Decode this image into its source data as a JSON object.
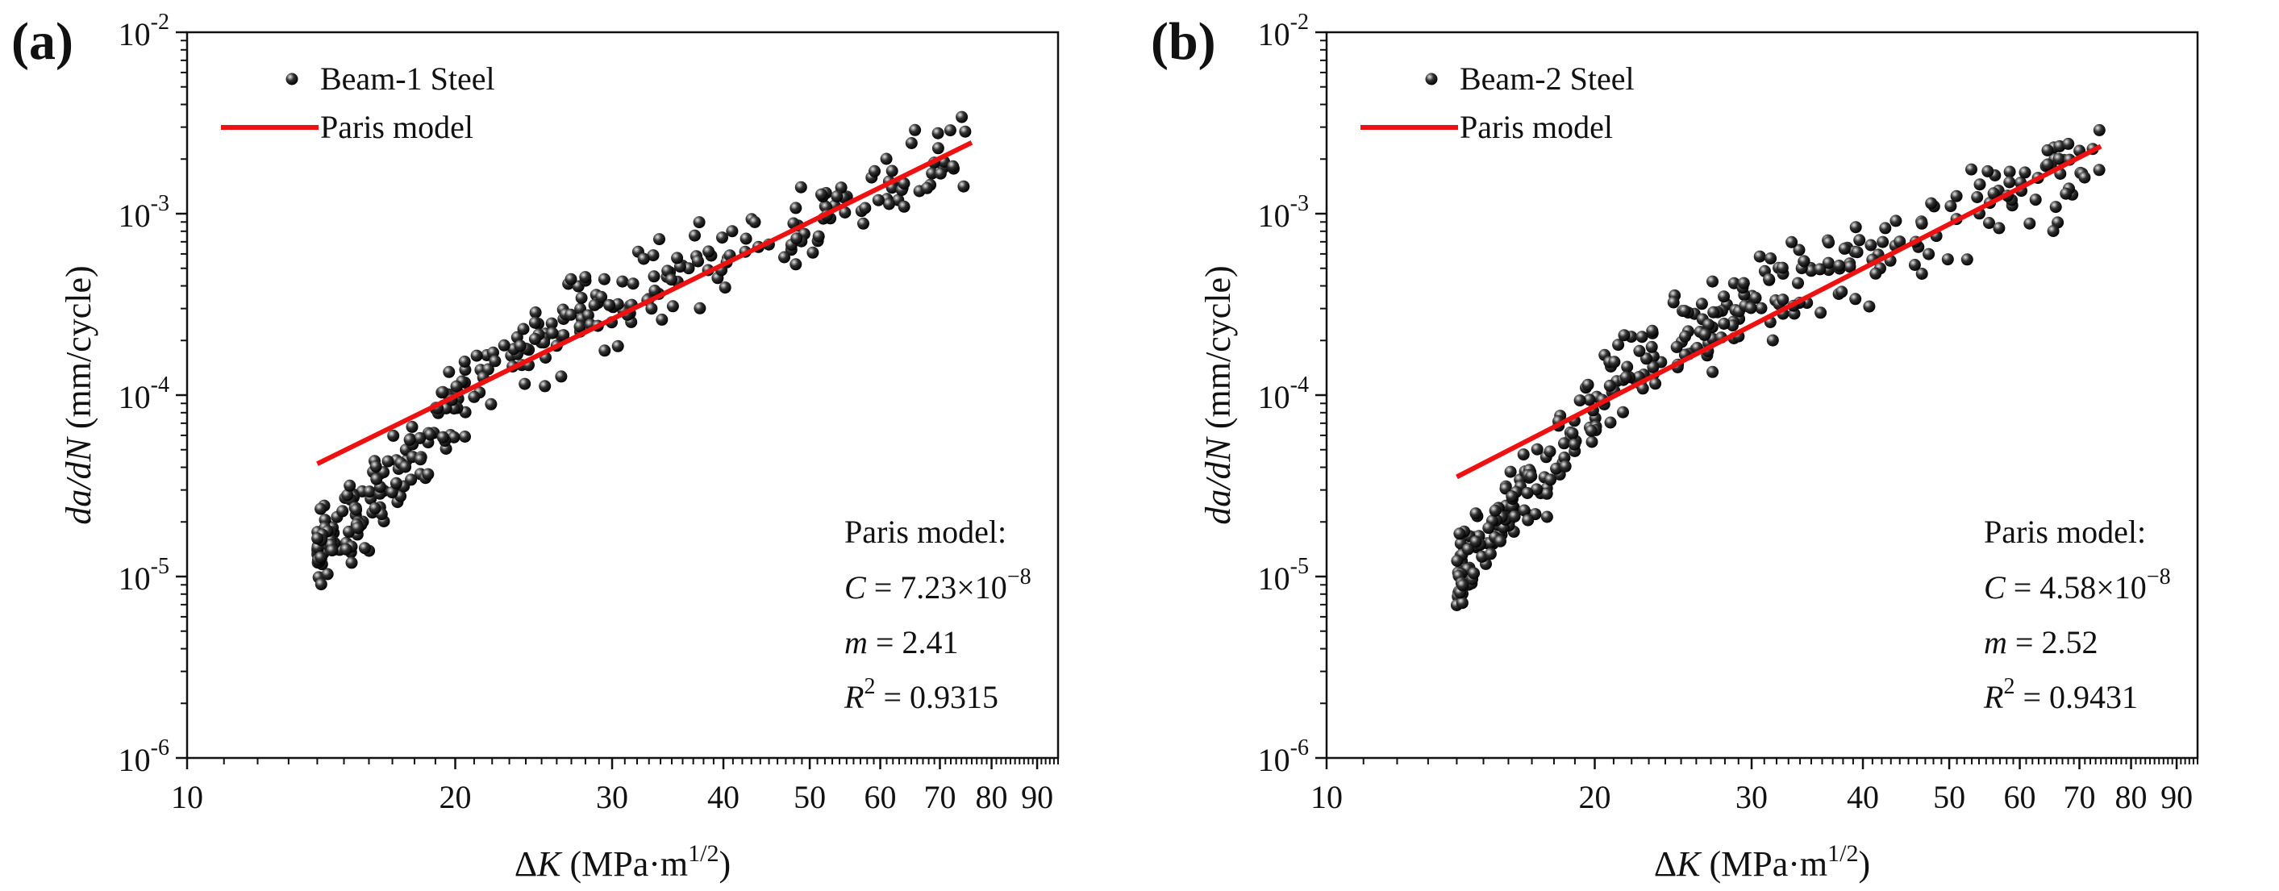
{
  "panels": [
    {
      "letter": "(a)",
      "legend": {
        "scatter": "Beam-1 Steel",
        "line": "Paris model"
      },
      "annotation": {
        "title": "Paris model:",
        "c_label": "C",
        "c_value": "7.23×10",
        "c_exp": "−8",
        "m_label": "m",
        "m_value": "2.41",
        "r_label": "R",
        "r_exp": "2",
        "r_value": "0.9315"
      }
    },
    {
      "letter": "(b)",
      "legend": {
        "scatter": "Beam-2 Steel",
        "line": "Paris model"
      },
      "annotation": {
        "title": "Paris model:",
        "c_label": "C",
        "c_value": "4.58×10",
        "c_exp": "−8",
        "m_label": "m",
        "m_value": "2.52",
        "r_label": "R",
        "r_exp": "2",
        "r_value": "0.9431"
      }
    }
  ],
  "chart_data": [
    {
      "type": "scatter",
      "title": "(a)",
      "xlabel": "ΔK (MPa·m^1/2)",
      "ylabel": "da/dN (mm/cycle)",
      "xscale": "log",
      "yscale": "log",
      "xlim": [
        10,
        95
      ],
      "ylim": [
        1e-06,
        0.01
      ],
      "xticks": [
        10,
        20,
        30,
        40,
        50,
        60,
        70,
        80,
        90
      ],
      "yticks": [
        {
          "base": "10",
          "exp": "-6"
        },
        {
          "base": "10",
          "exp": "-5"
        },
        {
          "base": "10",
          "exp": "-4"
        },
        {
          "base": "10",
          "exp": "-3"
        },
        {
          "base": "10",
          "exp": "-2"
        }
      ],
      "legend_position": "top-left",
      "series": [
        {
          "name": "Beam-1 Steel",
          "kind": "points",
          "xrange": [
            14,
            76
          ],
          "seed": 7,
          "points": [
            [
              14.0,
              1.3e-05
            ],
            [
              14.5,
              1.7e-05
            ],
            [
              15.0,
              2e-05
            ],
            [
              16.0,
              2.5e-05
            ],
            [
              17.0,
              3.3e-05
            ],
            [
              18.0,
              4.5e-05
            ],
            [
              19.0,
              7e-05
            ],
            [
              20.0,
              0.0001
            ],
            [
              22.0,
              0.00014
            ],
            [
              24.0,
              0.00018
            ],
            [
              26.0,
              0.00023
            ],
            [
              28.0,
              0.00029
            ],
            [
              30.0,
              0.00034
            ],
            [
              33.0,
              0.00042
            ],
            [
              36.0,
              0.0005
            ],
            [
              40.0,
              0.00056
            ],
            [
              45.0,
              0.00074
            ],
            [
              50.0,
              0.0009
            ],
            [
              55.0,
              0.00115
            ],
            [
              60.0,
              0.00145
            ],
            [
              66.0,
              0.00155
            ],
            [
              72.0,
              0.00225
            ],
            [
              76.0,
              0.0021
            ]
          ]
        },
        {
          "name": "Paris model",
          "kind": "line",
          "C": 7.23e-08,
          "m": 2.41,
          "x": [
            14,
            76
          ],
          "color": "#ee1111"
        }
      ]
    },
    {
      "type": "scatter",
      "title": "(b)",
      "xlabel": "ΔK (MPa·m^1/2)",
      "ylabel": "da/dN (mm/cycle)",
      "xscale": "log",
      "yscale": "log",
      "xlim": [
        10,
        95
      ],
      "ylim": [
        1e-06,
        0.01
      ],
      "xticks": [
        10,
        20,
        30,
        40,
        50,
        60,
        70,
        80,
        90
      ],
      "yticks": [
        {
          "base": "10",
          "exp": "-6"
        },
        {
          "base": "10",
          "exp": "-5"
        },
        {
          "base": "10",
          "exp": "-4"
        },
        {
          "base": "10",
          "exp": "-3"
        },
        {
          "base": "10",
          "exp": "-2"
        }
      ],
      "legend_position": "top-left",
      "series": [
        {
          "name": "Beam-2 Steel",
          "kind": "points",
          "xrange": [
            14,
            74
          ],
          "seed": 13,
          "points": [
            [
              14.0,
              1e-05
            ],
            [
              14.5,
              1.4e-05
            ],
            [
              15.0,
              1.8e-05
            ],
            [
              16.0,
              2.3e-05
            ],
            [
              17.0,
              3e-05
            ],
            [
              18.0,
              4.5e-05
            ],
            [
              19.0,
              6.5e-05
            ],
            [
              20.0,
              9e-05
            ],
            [
              22.0,
              0.00013
            ],
            [
              24.0,
              0.00019
            ],
            [
              26.0,
              0.00023
            ],
            [
              28.0,
              0.00027
            ],
            [
              30.0,
              0.00034
            ],
            [
              33.0,
              0.00039
            ],
            [
              36.0,
              0.00046
            ],
            [
              40.0,
              0.00054
            ],
            [
              45.0,
              0.00068
            ],
            [
              50.0,
              0.00085
            ],
            [
              55.0,
              0.0011
            ],
            [
              60.0,
              0.0014
            ],
            [
              66.0,
              0.0017
            ],
            [
              72.0,
              0.0021
            ],
            [
              74.0,
              0.00215
            ]
          ]
        },
        {
          "name": "Paris model",
          "kind": "line",
          "C": 4.58e-08,
          "m": 2.52,
          "x": [
            14,
            74
          ],
          "color": "#ee1111"
        }
      ]
    }
  ]
}
